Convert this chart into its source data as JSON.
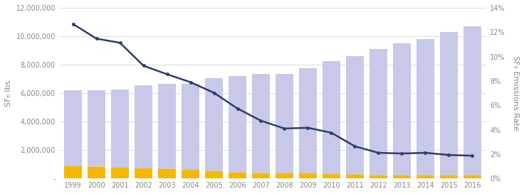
{
  "years": [
    1999,
    2000,
    2001,
    2002,
    2003,
    2004,
    2005,
    2006,
    2007,
    2008,
    2009,
    2010,
    2011,
    2012,
    2013,
    2014,
    2015,
    2016
  ],
  "purple_bars": [
    6200000,
    6200000,
    6250000,
    6550000,
    6650000,
    6650000,
    7050000,
    7200000,
    7350000,
    7350000,
    7750000,
    8250000,
    8600000,
    9100000,
    9500000,
    9800000,
    10300000,
    10700000
  ],
  "yellow_bars": [
    850000,
    820000,
    780000,
    700000,
    650000,
    620000,
    530000,
    430000,
    370000,
    360000,
    360000,
    330000,
    270000,
    230000,
    230000,
    200000,
    190000,
    195000
  ],
  "line_pct": [
    0.1267,
    0.1147,
    0.1113,
    0.0925,
    0.0855,
    0.079,
    0.0703,
    0.0574,
    0.0474,
    0.041,
    0.0416,
    0.0375,
    0.0264,
    0.0211,
    0.0205,
    0.0211,
    0.0193,
    0.0187
  ],
  "bar_color_purple": "#c8c8e8",
  "bar_color_yellow": "#f5b800",
  "line_color": "#2b3f6b",
  "left_ylim": [
    0,
    12000000
  ],
  "right_ylim": [
    0,
    0.14
  ],
  "left_ylabel": "SF₆ lbs",
  "right_ylabel": "SF₆ Emissions Rate",
  "background_color": "#ffffff",
  "grid_color": "#cccccc",
  "tick_label_color": "#888888",
  "axis_label_color": "#888888"
}
